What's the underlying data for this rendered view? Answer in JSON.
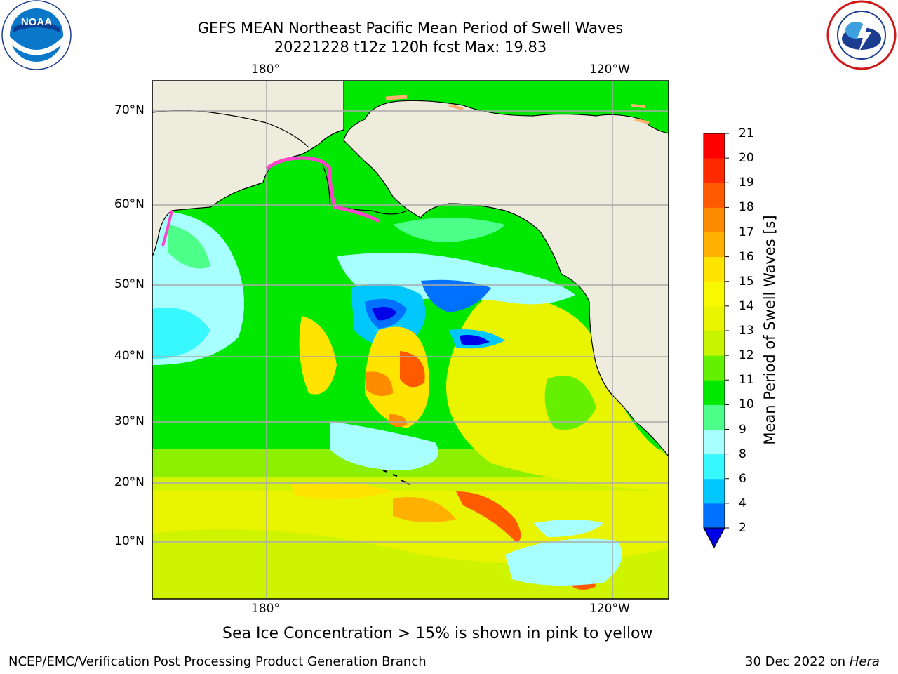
{
  "title_line1": "GEFS MEAN Northeast Pacific Mean Period of Swell Waves",
  "title_line2": "20221228 t12z 120h fcst   Max: 19.83",
  "logos": {
    "left_text": "NOAA",
    "left_ring_text": "NATIONAL OCEANIC AND ATMOSPHERIC ADMINISTRATION · U.S. DEPARTMENT OF COMMERCE",
    "right_ring_text": "NATIONAL WEATHER SERVICE"
  },
  "map": {
    "lon_labels_top": [
      "180°",
      "120°W"
    ],
    "lon_labels_bottom": [
      "180°",
      "120°W"
    ],
    "lat_labels": [
      "70°N",
      "60°N",
      "50°N",
      "40°N",
      "30°N",
      "20°N",
      "10°N"
    ],
    "land_color": "#eeecdc",
    "gridline_color": "#aaaaaa"
  },
  "colorbar": {
    "label": "Mean Period of Swell Waves [s]",
    "ticks": [
      "2",
      "4",
      "6",
      "8",
      "9",
      "10",
      "11",
      "12",
      "13",
      "14",
      "15",
      "16",
      "17",
      "18",
      "19",
      "20",
      "21"
    ],
    "colors": [
      "#0070ff",
      "#00c8ff",
      "#38f8ff",
      "#a8ffff",
      "#4cff88",
      "#00e800",
      "#64f000",
      "#c8f400",
      "#e8f400",
      "#f8f800",
      "#ffe400",
      "#ffb000",
      "#ff8c00",
      "#ff5a00",
      "#ff2a00",
      "#ff0000"
    ],
    "extend_color": "#0000e6"
  },
  "caption": "Sea Ice Concentration > 15% is shown in pink to yellow",
  "footer_left": "NCEP/EMC/Verification Post Processing Product Generation Branch",
  "footer_right_prefix": "30 Dec 2022 on",
  "footer_right_machine": "Hera"
}
